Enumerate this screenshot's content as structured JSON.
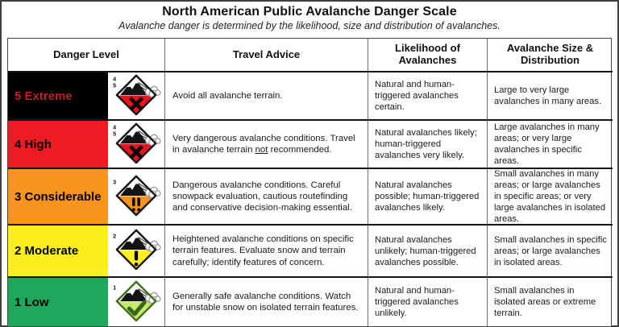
{
  "title": "North American Public Avalanche Danger Scale",
  "subtitle": "Avalanche danger is determined by the likelihood, size and distribution of avalanches.",
  "header": {
    "danger_level": "Danger Level",
    "travel_advice": "Travel Advice",
    "likelihood": "Likelihood of Avalanches",
    "size": "Avalanche Size & Distribution"
  },
  "rows": [
    {
      "level": "5 Extreme",
      "level_color": "#c41e1e",
      "bg": "#000000",
      "icon": {
        "name": "extreme-danger-icon",
        "numbers": [
          "4",
          "5"
        ],
        "fill": "#e8131c",
        "symbol": "x",
        "symbol_color": "#000000",
        "outline": "#141414"
      },
      "advice_pre": "Avoid all avalanche terrain.",
      "advice_underline": "",
      "advice_post": "",
      "likelihood": "Natural and human-triggered avalanches certain.",
      "size": "Large to very large avalanches in many areas."
    },
    {
      "level": "4 High",
      "level_color": "#000000",
      "bg": "#ed1c24",
      "icon": {
        "name": "high-danger-icon",
        "numbers": [
          "4",
          "5"
        ],
        "fill": "#e8131c",
        "symbol": "x",
        "symbol_color": "#000000",
        "outline": "#141414"
      },
      "advice_pre": "Very dangerous avalanche conditions. Travel in avalanche terrain ",
      "advice_underline": "not",
      "advice_post": " recommended.",
      "likelihood": "Natural avalanches likely; human-triggered avalanches very likely.",
      "size": "Large avalanches in many areas; or very large avalanches in specific areas."
    },
    {
      "level": "3 Considerable",
      "level_color": "#000000",
      "bg": "#f7941d",
      "icon": {
        "name": "considerable-danger-icon",
        "numbers": [
          "3"
        ],
        "fill": "#f7941d",
        "symbol": "!!",
        "symbol_color": "#000000",
        "outline": "#141414"
      },
      "advice_pre": "Dangerous avalanche conditions. Careful snowpack evaluation, cautious routefinding and conservative decision-making essential.",
      "advice_underline": "",
      "advice_post": "",
      "likelihood": "Natural avalanches possible; human-triggered avalanches likely.",
      "size": "Small avalanches in many areas; or large avalanches in specific areas; or very large avalanches in isolated areas."
    },
    {
      "level": "2 Moderate",
      "level_color": "#000000",
      "bg": "#faee1f",
      "icon": {
        "name": "moderate-danger-icon",
        "numbers": [
          "2"
        ],
        "fill": "#fcee21",
        "symbol": "!",
        "symbol_color": "#000000",
        "outline": "#141414"
      },
      "advice_pre": "Heightened avalanche conditions on specific terrain features. Evaluate snow and terrain carefully; identify features of concern.",
      "advice_underline": "",
      "advice_post": "",
      "likelihood": "Natural avalanches unlikely; human-triggered avalanches possible.",
      "size": "Small avalanches in specific areas; or large avalanches in isolated areas."
    },
    {
      "level": "1 Low",
      "level_color": "#000000",
      "bg": "#1fa75c",
      "icon": {
        "name": "low-danger-icon",
        "numbers": [
          "1"
        ],
        "fill": "#c6e86c",
        "symbol": "check",
        "symbol_color": "#3a661c",
        "outline": "#40701f"
      },
      "advice_pre": "Generally safe avalanche conditions. Watch for unstable snow on isolated terrain features.",
      "advice_underline": "",
      "advice_post": "",
      "likelihood": "Natural and human-triggered avalanches unlikely.",
      "size": "Small avalanches in isolated areas or extreme terrain."
    }
  ]
}
